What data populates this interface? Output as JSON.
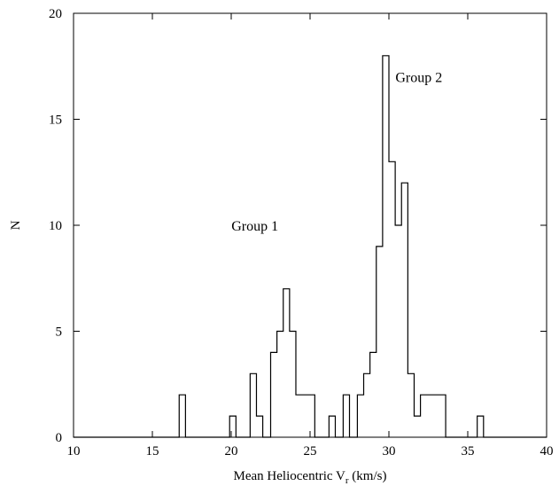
{
  "chart_data": {
    "type": "bar",
    "histogram": true,
    "title": "",
    "xlabel_main": "Mean Heliocentric V",
    "xlabel_sub": "r",
    "xlabel_tail": " (km/s)",
    "ylabel": "N",
    "xlim": [
      10,
      40
    ],
    "ylim": [
      0,
      20
    ],
    "xticks": [
      "10",
      "15",
      "20",
      "25",
      "30",
      "35",
      "40"
    ],
    "yticks": [
      "0",
      "5",
      "10",
      "15",
      "20"
    ],
    "grid": false,
    "bin_width": 0.4,
    "bins": [
      {
        "x0": 16.7,
        "count": 2
      },
      {
        "x0": 19.9,
        "count": 1
      },
      {
        "x0": 21.2,
        "count": 3
      },
      {
        "x0": 21.6,
        "count": 1
      },
      {
        "x0": 22.5,
        "count": 4
      },
      {
        "x0": 22.9,
        "count": 5
      },
      {
        "x0": 23.3,
        "count": 7
      },
      {
        "x0": 23.7,
        "count": 5
      },
      {
        "x0": 24.1,
        "count": 2
      },
      {
        "x0": 24.5,
        "count": 2
      },
      {
        "x0": 24.9,
        "count": 2
      },
      {
        "x0": 26.2,
        "count": 1
      },
      {
        "x0": 27.1,
        "count": 2
      },
      {
        "x0": 28.0,
        "count": 2
      },
      {
        "x0": 28.4,
        "count": 3
      },
      {
        "x0": 28.8,
        "count": 4
      },
      {
        "x0": 29.2,
        "count": 9
      },
      {
        "x0": 29.6,
        "count": 18
      },
      {
        "x0": 30.0,
        "count": 13
      },
      {
        "x0": 30.4,
        "count": 10
      },
      {
        "x0": 30.8,
        "count": 12
      },
      {
        "x0": 31.2,
        "count": 3
      },
      {
        "x0": 31.6,
        "count": 1
      },
      {
        "x0": 32.0,
        "count": 2
      },
      {
        "x0": 32.4,
        "count": 2
      },
      {
        "x0": 32.8,
        "count": 2
      },
      {
        "x0": 33.2,
        "count": 2
      },
      {
        "x0": 35.6,
        "count": 1
      }
    ],
    "annotations": [
      {
        "text": "Group 1",
        "x": 21.5,
        "y": 10
      },
      {
        "text": "Group 2",
        "x": 31.9,
        "y": 17
      }
    ]
  }
}
